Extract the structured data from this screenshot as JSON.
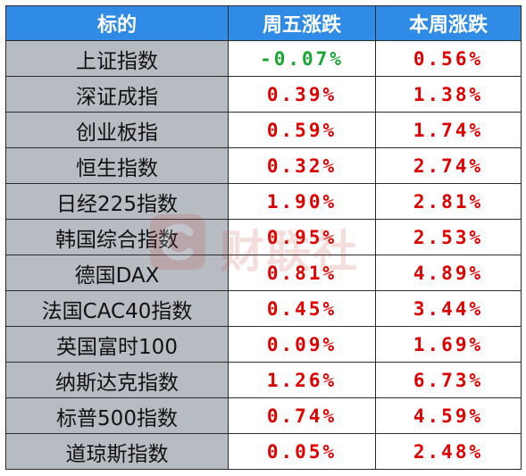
{
  "colors": {
    "header_bg": "#2f8be6",
    "name_cell_bg": "#b7bcc3",
    "up": "#e00000",
    "down": "#1aa632"
  },
  "header": {
    "col_name": "标的",
    "col_fri": "周五涨跌",
    "col_week": "本周涨跌"
  },
  "rows": [
    {
      "name": "上证指数",
      "fri": "-0.07%",
      "week": "0.56%"
    },
    {
      "name": "深证成指",
      "fri": "0.39%",
      "week": "1.38%"
    },
    {
      "name": "创业板指",
      "fri": "0.59%",
      "week": "1.74%"
    },
    {
      "name": "恒生指数",
      "fri": "0.32%",
      "week": "2.74%"
    },
    {
      "name": "日经225指数",
      "fri": "1.90%",
      "week": "2.81%"
    },
    {
      "name": "韩国综合指数",
      "fri": "0.95%",
      "week": "2.53%"
    },
    {
      "name": "德国DAX",
      "fri": "0.81%",
      "week": "4.89%"
    },
    {
      "name": "法国CAC40指数",
      "fri": "0.45%",
      "week": "3.44%"
    },
    {
      "name": "英国富时100",
      "fri": "0.09%",
      "week": "1.69%"
    },
    {
      "name": "纳斯达克指数",
      "fri": "1.26%",
      "week": "6.73%"
    },
    {
      "name": "标普500指数",
      "fri": "0.74%",
      "week": "4.59%"
    },
    {
      "name": "道琼斯指数",
      "fri": "0.05%",
      "week": "2.48%"
    }
  ],
  "watermark": {
    "text": "财联社",
    "icon": "cls-logo-icon"
  }
}
